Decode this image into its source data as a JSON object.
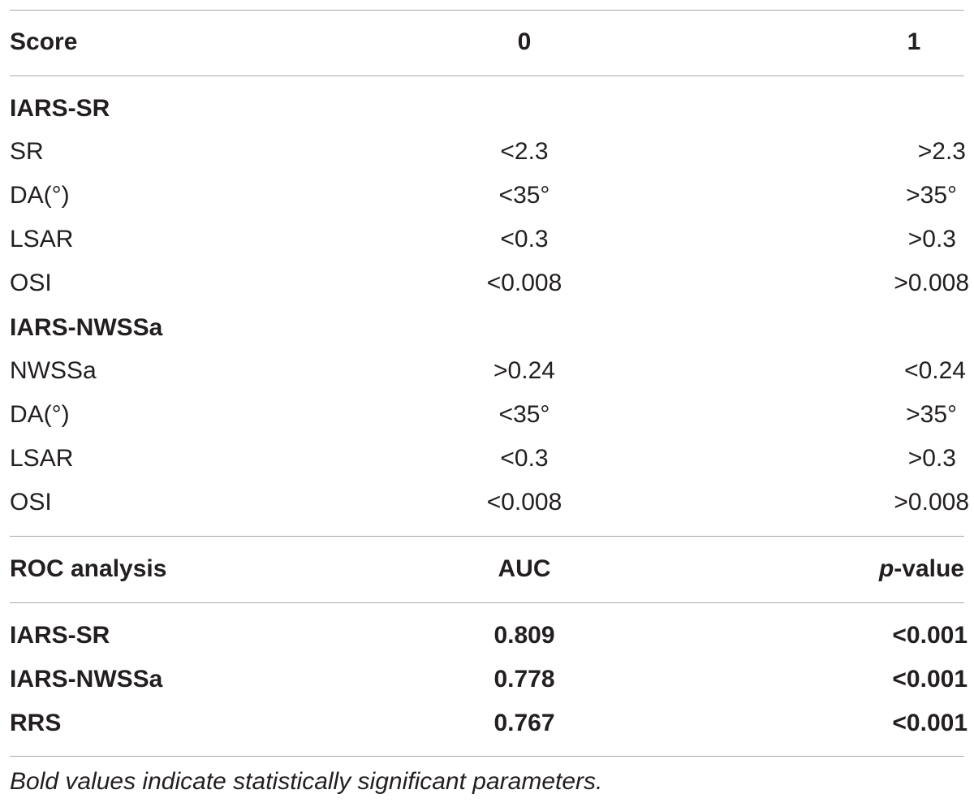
{
  "header": {
    "col1": "Score",
    "col2": "0",
    "col3": "1"
  },
  "groups": [
    {
      "title": "IARS-SR",
      "rows": [
        {
          "param": "SR",
          "score0": "<2.3",
          "score1": ">2.3"
        },
        {
          "param": "DA(°)",
          "score0": "<35°",
          "score1": ">35°"
        },
        {
          "param": "LSAR",
          "score0": "<0.3",
          "score1": ">0.3"
        },
        {
          "param": "OSI",
          "score0": "<0.008",
          "score1": ">0.008"
        }
      ]
    },
    {
      "title": "IARS-NWSSa",
      "rows": [
        {
          "param": "NWSSa",
          "score0": ">0.24",
          "score1": "<0.24"
        },
        {
          "param": "DA(°)",
          "score0": "<35°",
          "score1": ">35°"
        },
        {
          "param": "LSAR",
          "score0": "<0.3",
          "score1": ">0.3"
        },
        {
          "param": "OSI",
          "score0": "<0.008",
          "score1": ">0.008"
        }
      ]
    }
  ],
  "roc_header": {
    "col1": "ROC analysis",
    "col2": "AUC",
    "col3_italic": "p",
    "col3_rest": "-value"
  },
  "roc_rows": [
    {
      "name": "IARS-SR",
      "auc": "0.809",
      "p": "<0.001"
    },
    {
      "name": "IARS-NWSSa",
      "auc": "0.778",
      "p": "<0.001"
    },
    {
      "name": "RRS",
      "auc": "0.767",
      "p": "<0.001"
    }
  ],
  "footnote": "Bold values indicate statistically significant parameters."
}
